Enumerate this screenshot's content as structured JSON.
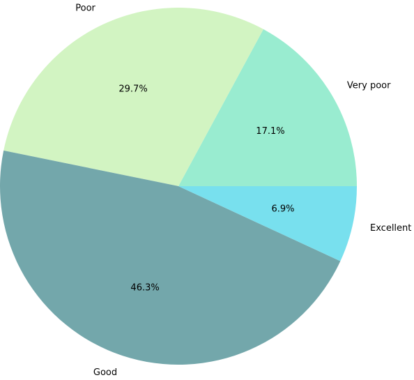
{
  "chart_data": {
    "type": "pie",
    "title": "",
    "start_angle_deg": 0,
    "direction": "counterclockwise",
    "slices": [
      {
        "label": "Very poor",
        "percent": 17.1,
        "value_label": "17.1%",
        "color": "#99ecd0"
      },
      {
        "label": "Poor",
        "percent": 29.7,
        "value_label": "29.7%",
        "color": "#d2f4c2"
      },
      {
        "label": "Good",
        "percent": 46.3,
        "value_label": "46.3%",
        "color": "#73a7ab"
      },
      {
        "label": "Excellent",
        "percent": 6.9,
        "value_label": "6.9%",
        "color": "#78e0ee"
      }
    ]
  }
}
